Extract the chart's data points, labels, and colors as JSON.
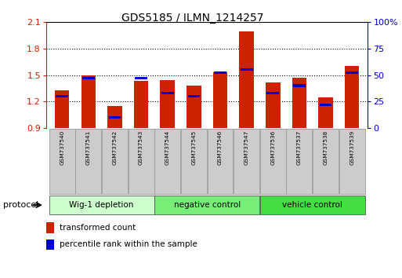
{
  "title": "GDS5185 / ILMN_1214257",
  "samples": [
    "GSM737540",
    "GSM737541",
    "GSM737542",
    "GSM737543",
    "GSM737544",
    "GSM737545",
    "GSM737546",
    "GSM737547",
    "GSM737536",
    "GSM737537",
    "GSM737538",
    "GSM737539"
  ],
  "red_values": [
    1.33,
    1.5,
    1.15,
    1.43,
    1.44,
    1.38,
    1.53,
    2.0,
    1.42,
    1.47,
    1.25,
    1.6
  ],
  "blue_values": [
    0.3,
    0.47,
    0.1,
    0.47,
    0.33,
    0.3,
    0.52,
    0.55,
    0.33,
    0.4,
    0.22,
    0.52
  ],
  "ylim": [
    0.9,
    2.1
  ],
  "yticks_left": [
    0.9,
    1.2,
    1.5,
    1.8,
    2.1
  ],
  "yticks_right": [
    0,
    25,
    50,
    75,
    100
  ],
  "left_axis_color": "#cc2200",
  "right_axis_color": "#0000cc",
  "groups": [
    {
      "label": "Wig-1 depletion",
      "start": 0,
      "end": 4,
      "color": "#ccffcc"
    },
    {
      "label": "negative control",
      "start": 4,
      "end": 8,
      "color": "#77ee77"
    },
    {
      "label": "vehicle control",
      "start": 8,
      "end": 12,
      "color": "#44dd44"
    }
  ],
  "bar_width": 0.55,
  "bar_color_red": "#cc2200",
  "bar_color_blue": "#0000cc",
  "background_color": "#ffffff",
  "tick_label_bg": "#cccccc",
  "protocol_label": "protocol",
  "legend_red": "transformed count",
  "legend_blue": "percentile rank within the sample"
}
